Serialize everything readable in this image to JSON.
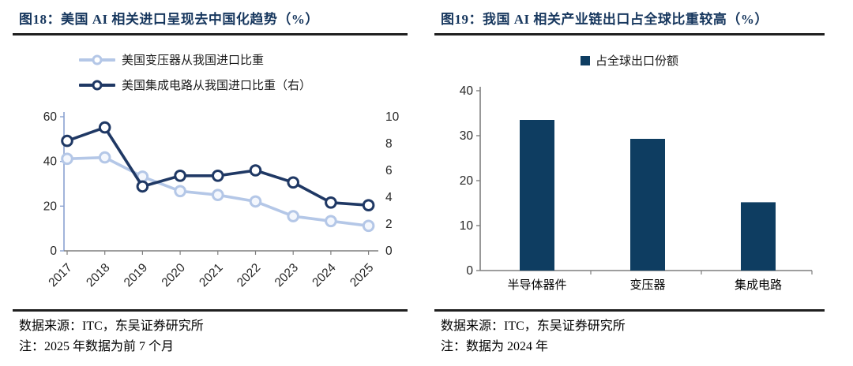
{
  "colors": {
    "title": "#17375e",
    "divider": "#1f1f1f",
    "axis": "#7f7f7f",
    "axis_blue": "#8aa2d0",
    "text": "#000000"
  },
  "figures": [
    {
      "id": "fig18",
      "title": "图18：美国 AI 相关进口呈现去中国化趋势（%）",
      "source": "数据来源：ITC，东吴证券研究所",
      "note": "注：2025 年数据为前 7 个月"
    },
    {
      "id": "fig19",
      "title": "图19：我国 AI 相关产业链出口占全球比重较高（%）",
      "source": "数据来源：ITC，东吴证券研究所",
      "note": "注：数据为 2024 年"
    }
  ],
  "chart_data": [
    {
      "type": "line",
      "title": "图18：美国 AI 相关进口呈现去中国化趋势（%）",
      "x": [
        "2017",
        "2018",
        "2019",
        "2020",
        "2021",
        "2022",
        "2023",
        "2024",
        "2025"
      ],
      "series": [
        {
          "name": "美国变压器从我国进口比重",
          "axis": "left",
          "color": "#b4c7e7",
          "marker_fill": "#f4f7fd",
          "values": [
            41.2,
            41.8,
            33.2,
            26.7,
            25.0,
            22.1,
            15.5,
            13.3,
            11.2
          ]
        },
        {
          "name": "美国集成电路从我国进口比重（右）",
          "axis": "right",
          "color": "#1f3864",
          "marker_fill": "#ffffff",
          "values": [
            8.2,
            9.2,
            4.8,
            5.6,
            5.6,
            6.0,
            5.1,
            3.6,
            3.4
          ]
        }
      ],
      "left_axis": {
        "min": 0,
        "max": 60,
        "ticks": [
          0,
          20,
          40,
          60
        ]
      },
      "right_axis": {
        "min": 0,
        "max": 10,
        "ticks": [
          0,
          2,
          4,
          6,
          8,
          10
        ]
      },
      "legend_position": "top",
      "grid": false
    },
    {
      "type": "bar",
      "title": "图19：我国 AI 相关产业链出口占全球比重较高（%）",
      "legend": "占全球出口份额",
      "categories": [
        "半导体器件",
        "变压器",
        "集成电路"
      ],
      "values": [
        33.5,
        29.3,
        15.2
      ],
      "bar_color": "#0e3d61",
      "y_axis": {
        "min": 0,
        "max": 40,
        "ticks": [
          0,
          10,
          20,
          30,
          40
        ]
      },
      "legend_position": "top",
      "grid": false
    }
  ]
}
